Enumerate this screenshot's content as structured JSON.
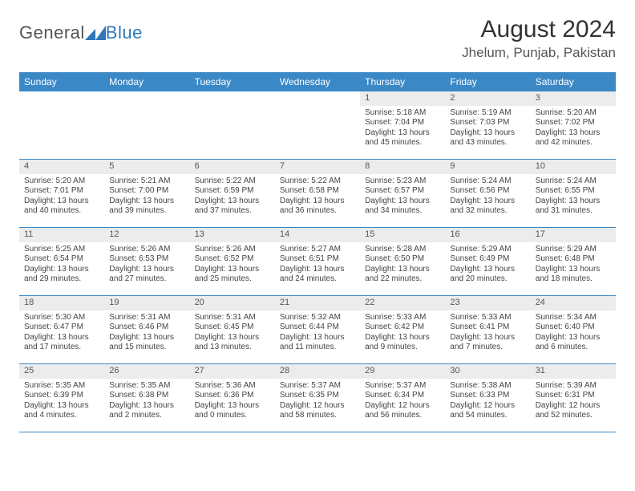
{
  "brand": {
    "text1": "General",
    "text2": "Blue",
    "logo_color": "#2f77b8"
  },
  "title": {
    "month": "August 2024",
    "location": "Jhelum, Punjab, Pakistan"
  },
  "colors": {
    "header_bg": "#3b88c6",
    "header_text": "#ffffff",
    "daynum_bg": "#ececec",
    "rule": "#3b88c6"
  },
  "dow": [
    "Sunday",
    "Monday",
    "Tuesday",
    "Wednesday",
    "Thursday",
    "Friday",
    "Saturday"
  ],
  "weeks": [
    [
      {
        "n": "",
        "sr": "",
        "ss": "",
        "dl": ""
      },
      {
        "n": "",
        "sr": "",
        "ss": "",
        "dl": ""
      },
      {
        "n": "",
        "sr": "",
        "ss": "",
        "dl": ""
      },
      {
        "n": "",
        "sr": "",
        "ss": "",
        "dl": ""
      },
      {
        "n": "1",
        "sr": "Sunrise: 5:18 AM",
        "ss": "Sunset: 7:04 PM",
        "dl": "Daylight: 13 hours and 45 minutes."
      },
      {
        "n": "2",
        "sr": "Sunrise: 5:19 AM",
        "ss": "Sunset: 7:03 PM",
        "dl": "Daylight: 13 hours and 43 minutes."
      },
      {
        "n": "3",
        "sr": "Sunrise: 5:20 AM",
        "ss": "Sunset: 7:02 PM",
        "dl": "Daylight: 13 hours and 42 minutes."
      }
    ],
    [
      {
        "n": "4",
        "sr": "Sunrise: 5:20 AM",
        "ss": "Sunset: 7:01 PM",
        "dl": "Daylight: 13 hours and 40 minutes."
      },
      {
        "n": "5",
        "sr": "Sunrise: 5:21 AM",
        "ss": "Sunset: 7:00 PM",
        "dl": "Daylight: 13 hours and 39 minutes."
      },
      {
        "n": "6",
        "sr": "Sunrise: 5:22 AM",
        "ss": "Sunset: 6:59 PM",
        "dl": "Daylight: 13 hours and 37 minutes."
      },
      {
        "n": "7",
        "sr": "Sunrise: 5:22 AM",
        "ss": "Sunset: 6:58 PM",
        "dl": "Daylight: 13 hours and 36 minutes."
      },
      {
        "n": "8",
        "sr": "Sunrise: 5:23 AM",
        "ss": "Sunset: 6:57 PM",
        "dl": "Daylight: 13 hours and 34 minutes."
      },
      {
        "n": "9",
        "sr": "Sunrise: 5:24 AM",
        "ss": "Sunset: 6:56 PM",
        "dl": "Daylight: 13 hours and 32 minutes."
      },
      {
        "n": "10",
        "sr": "Sunrise: 5:24 AM",
        "ss": "Sunset: 6:55 PM",
        "dl": "Daylight: 13 hours and 31 minutes."
      }
    ],
    [
      {
        "n": "11",
        "sr": "Sunrise: 5:25 AM",
        "ss": "Sunset: 6:54 PM",
        "dl": "Daylight: 13 hours and 29 minutes."
      },
      {
        "n": "12",
        "sr": "Sunrise: 5:26 AM",
        "ss": "Sunset: 6:53 PM",
        "dl": "Daylight: 13 hours and 27 minutes."
      },
      {
        "n": "13",
        "sr": "Sunrise: 5:26 AM",
        "ss": "Sunset: 6:52 PM",
        "dl": "Daylight: 13 hours and 25 minutes."
      },
      {
        "n": "14",
        "sr": "Sunrise: 5:27 AM",
        "ss": "Sunset: 6:51 PM",
        "dl": "Daylight: 13 hours and 24 minutes."
      },
      {
        "n": "15",
        "sr": "Sunrise: 5:28 AM",
        "ss": "Sunset: 6:50 PM",
        "dl": "Daylight: 13 hours and 22 minutes."
      },
      {
        "n": "16",
        "sr": "Sunrise: 5:29 AM",
        "ss": "Sunset: 6:49 PM",
        "dl": "Daylight: 13 hours and 20 minutes."
      },
      {
        "n": "17",
        "sr": "Sunrise: 5:29 AM",
        "ss": "Sunset: 6:48 PM",
        "dl": "Daylight: 13 hours and 18 minutes."
      }
    ],
    [
      {
        "n": "18",
        "sr": "Sunrise: 5:30 AM",
        "ss": "Sunset: 6:47 PM",
        "dl": "Daylight: 13 hours and 17 minutes."
      },
      {
        "n": "19",
        "sr": "Sunrise: 5:31 AM",
        "ss": "Sunset: 6:46 PM",
        "dl": "Daylight: 13 hours and 15 minutes."
      },
      {
        "n": "20",
        "sr": "Sunrise: 5:31 AM",
        "ss": "Sunset: 6:45 PM",
        "dl": "Daylight: 13 hours and 13 minutes."
      },
      {
        "n": "21",
        "sr": "Sunrise: 5:32 AM",
        "ss": "Sunset: 6:44 PM",
        "dl": "Daylight: 13 hours and 11 minutes."
      },
      {
        "n": "22",
        "sr": "Sunrise: 5:33 AM",
        "ss": "Sunset: 6:42 PM",
        "dl": "Daylight: 13 hours and 9 minutes."
      },
      {
        "n": "23",
        "sr": "Sunrise: 5:33 AM",
        "ss": "Sunset: 6:41 PM",
        "dl": "Daylight: 13 hours and 7 minutes."
      },
      {
        "n": "24",
        "sr": "Sunrise: 5:34 AM",
        "ss": "Sunset: 6:40 PM",
        "dl": "Daylight: 13 hours and 6 minutes."
      }
    ],
    [
      {
        "n": "25",
        "sr": "Sunrise: 5:35 AM",
        "ss": "Sunset: 6:39 PM",
        "dl": "Daylight: 13 hours and 4 minutes."
      },
      {
        "n": "26",
        "sr": "Sunrise: 5:35 AM",
        "ss": "Sunset: 6:38 PM",
        "dl": "Daylight: 13 hours and 2 minutes."
      },
      {
        "n": "27",
        "sr": "Sunrise: 5:36 AM",
        "ss": "Sunset: 6:36 PM",
        "dl": "Daylight: 13 hours and 0 minutes."
      },
      {
        "n": "28",
        "sr": "Sunrise: 5:37 AM",
        "ss": "Sunset: 6:35 PM",
        "dl": "Daylight: 12 hours and 58 minutes."
      },
      {
        "n": "29",
        "sr": "Sunrise: 5:37 AM",
        "ss": "Sunset: 6:34 PM",
        "dl": "Daylight: 12 hours and 56 minutes."
      },
      {
        "n": "30",
        "sr": "Sunrise: 5:38 AM",
        "ss": "Sunset: 6:33 PM",
        "dl": "Daylight: 12 hours and 54 minutes."
      },
      {
        "n": "31",
        "sr": "Sunrise: 5:39 AM",
        "ss": "Sunset: 6:31 PM",
        "dl": "Daylight: 12 hours and 52 minutes."
      }
    ]
  ]
}
